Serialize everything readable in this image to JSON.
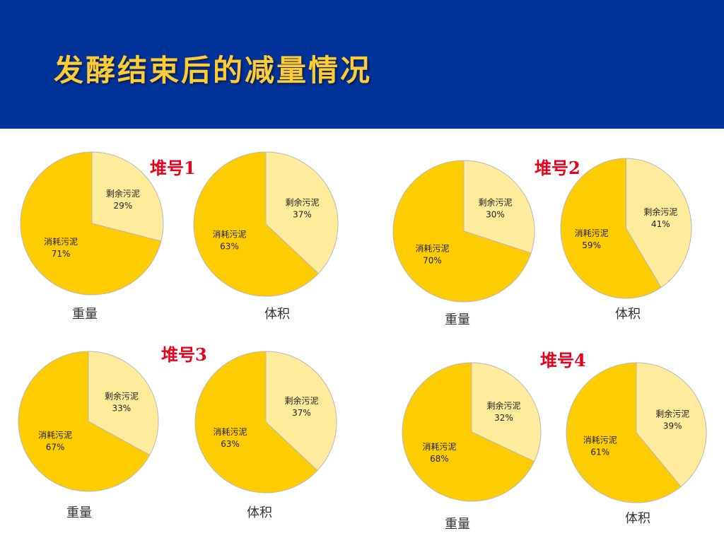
{
  "slide": {
    "title": "发酵结束后的减量情况",
    "colors": {
      "header_bg": "#003399",
      "title": "#ffcc33",
      "pile_label": "#e8001a",
      "consumed": "#ffcc00",
      "remaining": "#ffeb9c"
    }
  },
  "piles": [
    {
      "label": "堆号1"
    },
    {
      "label": "堆号2"
    },
    {
      "label": "堆号3"
    },
    {
      "label": "堆号4"
    }
  ],
  "chart_data": [
    {
      "type": "pie",
      "title": "重量",
      "categories": [
        "剩余污泥",
        "消耗污泥"
      ],
      "values": [
        29,
        71
      ],
      "value_labels": [
        "29%",
        "71%"
      ]
    },
    {
      "type": "pie",
      "title": "体积",
      "categories": [
        "剩余污泥",
        "消耗污泥"
      ],
      "values": [
        37,
        63
      ],
      "value_labels": [
        "37%",
        "63%"
      ]
    },
    {
      "type": "pie",
      "title": "重量",
      "categories": [
        "剩余污泥",
        "消耗污泥"
      ],
      "values": [
        30,
        70
      ],
      "value_labels": [
        "30%",
        "70%"
      ]
    },
    {
      "type": "pie",
      "title": "体积",
      "categories": [
        "剩余污泥",
        "消耗污泥"
      ],
      "values": [
        41,
        59
      ],
      "value_labels": [
        "41%",
        "59%"
      ]
    },
    {
      "type": "pie",
      "title": "重量",
      "categories": [
        "剩余污泥",
        "消耗污泥"
      ],
      "values": [
        33,
        67
      ],
      "value_labels": [
        "33%",
        "67%"
      ]
    },
    {
      "type": "pie",
      "title": "体积",
      "categories": [
        "剩余污泥",
        "消耗污泥"
      ],
      "values": [
        37,
        63
      ],
      "value_labels": [
        "37%",
        "63%"
      ]
    },
    {
      "type": "pie",
      "title": "重量",
      "categories": [
        "剩余污泥",
        "消耗污泥"
      ],
      "values": [
        32,
        68
      ],
      "value_labels": [
        "32%",
        "68%"
      ]
    },
    {
      "type": "pie",
      "title": "体积",
      "categories": [
        "剩余污泥",
        "消耗污泥"
      ],
      "values": [
        39,
        61
      ],
      "value_labels": [
        "39%",
        "61%"
      ]
    }
  ]
}
